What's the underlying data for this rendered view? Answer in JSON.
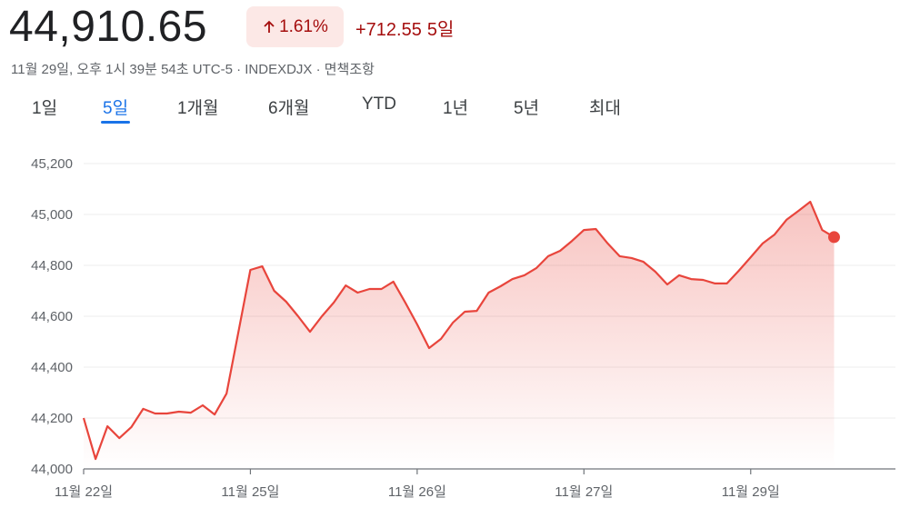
{
  "header": {
    "price": "44,910.65",
    "percent": "1.61%",
    "change": "+712.55",
    "period": "5일",
    "subtitle": "11월 29일, 오후 1시 39분 54초 UTC-5 · INDEXDJX · 면책조항"
  },
  "tabs": [
    "1일",
    "5일",
    "1개월",
    "6개월",
    "YTD",
    "1년",
    "5년",
    "최대"
  ],
  "chart_data": {
    "type": "line",
    "color": "#e8453c",
    "grid": true,
    "categories": [
      "11월 22일",
      null,
      null,
      null,
      null,
      null,
      null,
      null,
      null,
      null,
      null,
      null,
      null,
      null,
      "11월 25일",
      null,
      null,
      null,
      null,
      null,
      null,
      null,
      null,
      null,
      null,
      null,
      null,
      null,
      "11월 26일",
      null,
      null,
      null,
      null,
      null,
      null,
      null,
      null,
      null,
      null,
      null,
      null,
      null,
      "11월 27일",
      null,
      null,
      null,
      null,
      null,
      null,
      null,
      null,
      null,
      null,
      null,
      null,
      null,
      "11월 29일",
      null,
      null,
      null,
      null,
      null,
      null,
      null
    ],
    "values": [
      44200,
      44039,
      44168,
      44121,
      44164,
      44236,
      44218,
      44218,
      44225,
      44221,
      44250,
      44214,
      44296,
      44539,
      44782,
      44796,
      44700,
      44657,
      44600,
      44539,
      44600,
      44654,
      44721,
      44693,
      44707,
      44707,
      44736,
      44654,
      44568,
      44475,
      44511,
      44575,
      44618,
      44621,
      44693,
      44718,
      44746,
      44761,
      44789,
      44836,
      44857,
      44896,
      44939,
      44943,
      44886,
      44836,
      44829,
      44814,
      44775,
      44725,
      44761,
      44746,
      44743,
      44729,
      44729,
      44779,
      44832,
      44886,
      44921,
      44979,
      45014,
      45050,
      44939,
      44911
    ],
    "ylim": [
      44000,
      45300
    ],
    "yticks": [
      {
        "value": 44000,
        "label": "44,000"
      },
      {
        "value": 44200,
        "label": "44,200"
      },
      {
        "value": 44400,
        "label": "44,400"
      },
      {
        "value": 44600,
        "label": "44,600"
      },
      {
        "value": 44800,
        "label": "44,800"
      },
      {
        "value": 45000,
        "label": "45,000"
      },
      {
        "value": 45200,
        "label": "45,200"
      }
    ]
  }
}
